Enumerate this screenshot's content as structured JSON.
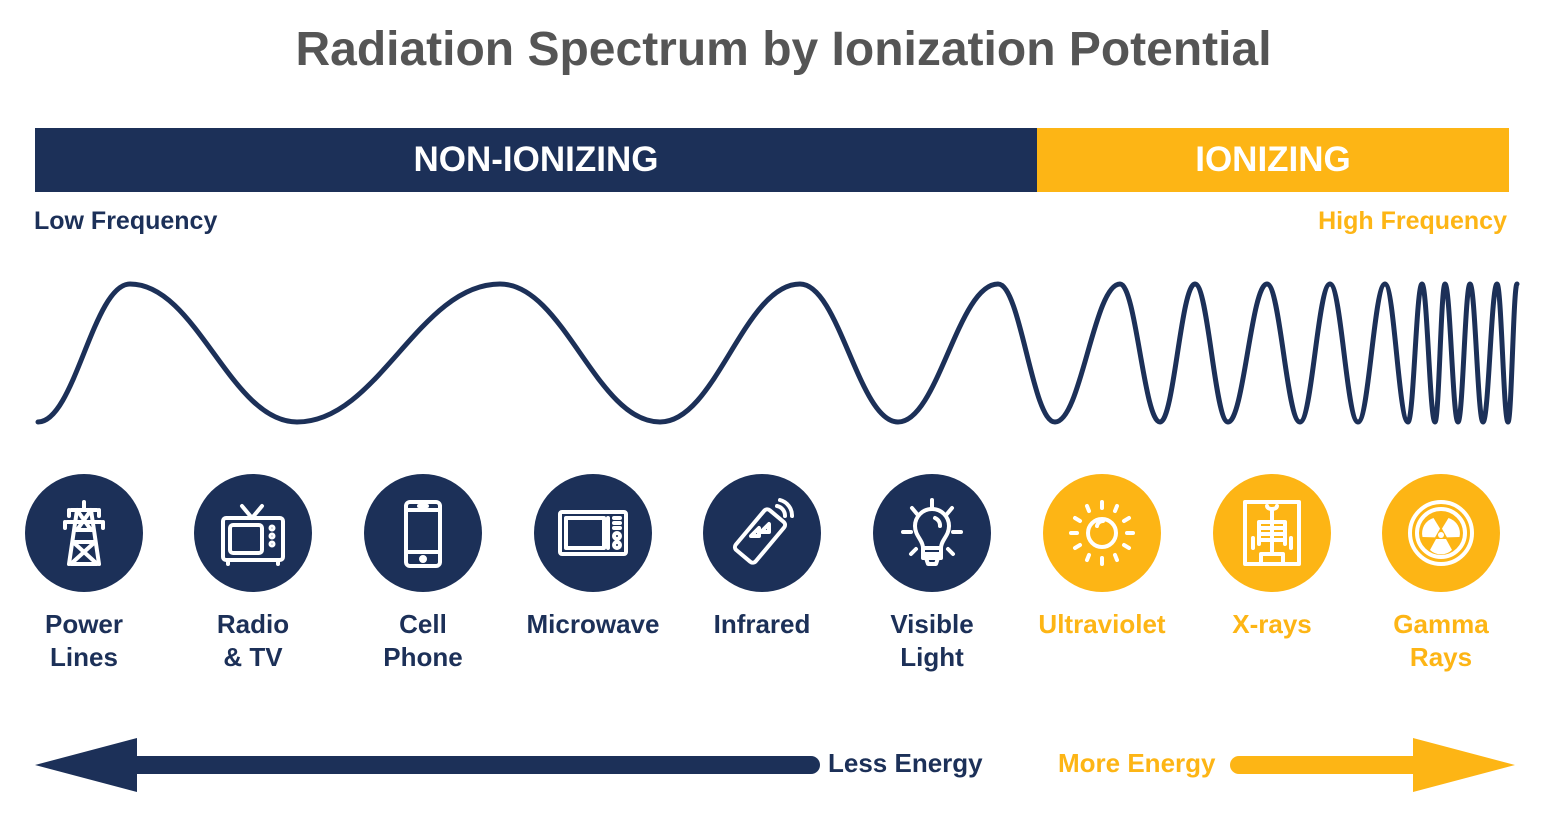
{
  "title": "Radiation Spectrum by Ionization Potential",
  "bands": {
    "non_ionizing": "NON-IONIZING",
    "ionizing": "IONIZING"
  },
  "frequency": {
    "low": "Low Frequency",
    "high": "High Frequency"
  },
  "colors": {
    "navy": "#1c3058",
    "yellow": "#fdb515",
    "title": "#555555"
  },
  "items": [
    {
      "line1": "Power",
      "line2": "Lines",
      "icon": "power-tower-icon",
      "type": "non-ionizing"
    },
    {
      "line1": "Radio",
      "line2": "& TV",
      "icon": "tv-icon",
      "type": "non-ionizing"
    },
    {
      "line1": "Cell",
      "line2": "Phone",
      "icon": "cell-phone-icon",
      "type": "non-ionizing"
    },
    {
      "line1": "Microwave",
      "line2": "",
      "icon": "microwave-icon",
      "type": "non-ionizing"
    },
    {
      "line1": "Infrared",
      "line2": "",
      "icon": "remote-control-icon",
      "type": "non-ionizing"
    },
    {
      "line1": "Visible",
      "line2": "Light",
      "icon": "light-bulb-icon",
      "type": "non-ionizing"
    },
    {
      "line1": "Ultraviolet",
      "line2": "",
      "icon": "sun-icon",
      "type": "ionizing"
    },
    {
      "line1": "X-rays",
      "line2": "",
      "icon": "x-ray-icon",
      "type": "ionizing"
    },
    {
      "line1": "Gamma",
      "line2": "Rays",
      "icon": "radiation-icon",
      "type": "ionizing"
    }
  ],
  "energy": {
    "less": "Less Energy",
    "more": "More Energy"
  }
}
